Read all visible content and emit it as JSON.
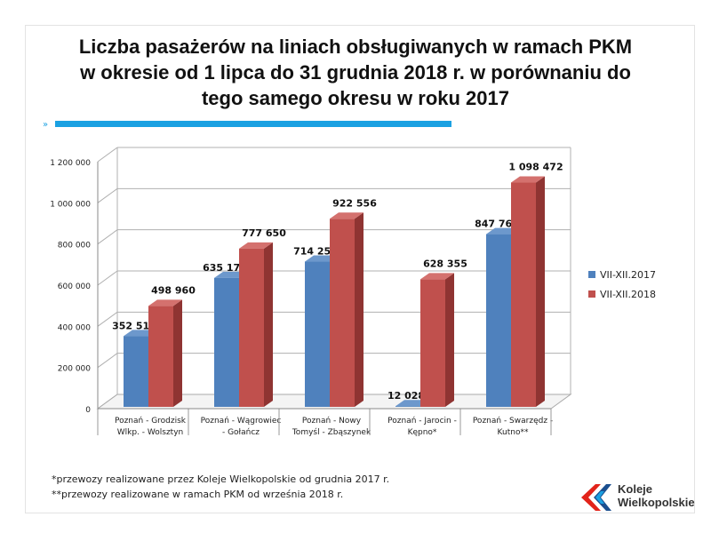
{
  "title_lines": [
    "Liczba pasażerów na liniach obsługiwanych w ramach PKM",
    "w okresie od 1 lipca do 31 grudnia 2018 r. w porównaniu do",
    "tego samego okresu w roku 2017"
  ],
  "footnotes": [
    "*przewozy realizowane przez Koleje Wielkopolskie od grudnia 2017 r.",
    "**przewozy realizowane w ramach PKM od września 2018 r."
  ],
  "logo": {
    "line1": "Koleje",
    "line2": "Wielkopolskie"
  },
  "colors": {
    "accent": "#1ba1e2",
    "series2017": "#4f81bd",
    "series2018": "#c0504d"
  },
  "chart_data": {
    "type": "bar",
    "title": "",
    "xlabel": "",
    "ylabel": "",
    "ylim": [
      0,
      1200000
    ],
    "yticks": [
      0,
      200000,
      400000,
      600000,
      800000,
      1000000,
      1200000
    ],
    "ytick_labels": [
      "0",
      "200 000",
      "400 000",
      "600 000",
      "800 000",
      "1 000 000",
      "1 200 000"
    ],
    "categories": [
      [
        "Poznań - Grodzisk",
        "Wlkp. - Wolsztyn"
      ],
      [
        "Poznań - Wągrowiec",
        "- Gołańcz"
      ],
      [
        "Poznań - Nowy",
        "Tomyśl - Zbąszynek"
      ],
      [
        "Poznań - Jarocin -",
        "Kępno*"
      ],
      [
        "Poznań - Swarzędz -",
        "Kutno**"
      ]
    ],
    "series": [
      {
        "name": "VII-XII.2017",
        "values": [
          352519,
          635179,
          714258,
          12028,
          847766
        ],
        "labels": [
          "352 519",
          "635 179",
          "714 258",
          "12 028",
          "847 766"
        ]
      },
      {
        "name": "VII-XII.2018",
        "values": [
          498960,
          777650,
          922556,
          628355,
          1098472
        ],
        "labels": [
          "498 960",
          "777 650",
          "922 556",
          "628 355",
          "1 098 472"
        ]
      }
    ],
    "legend_position": "right",
    "grid": true,
    "style": "3d-clustered-column"
  }
}
